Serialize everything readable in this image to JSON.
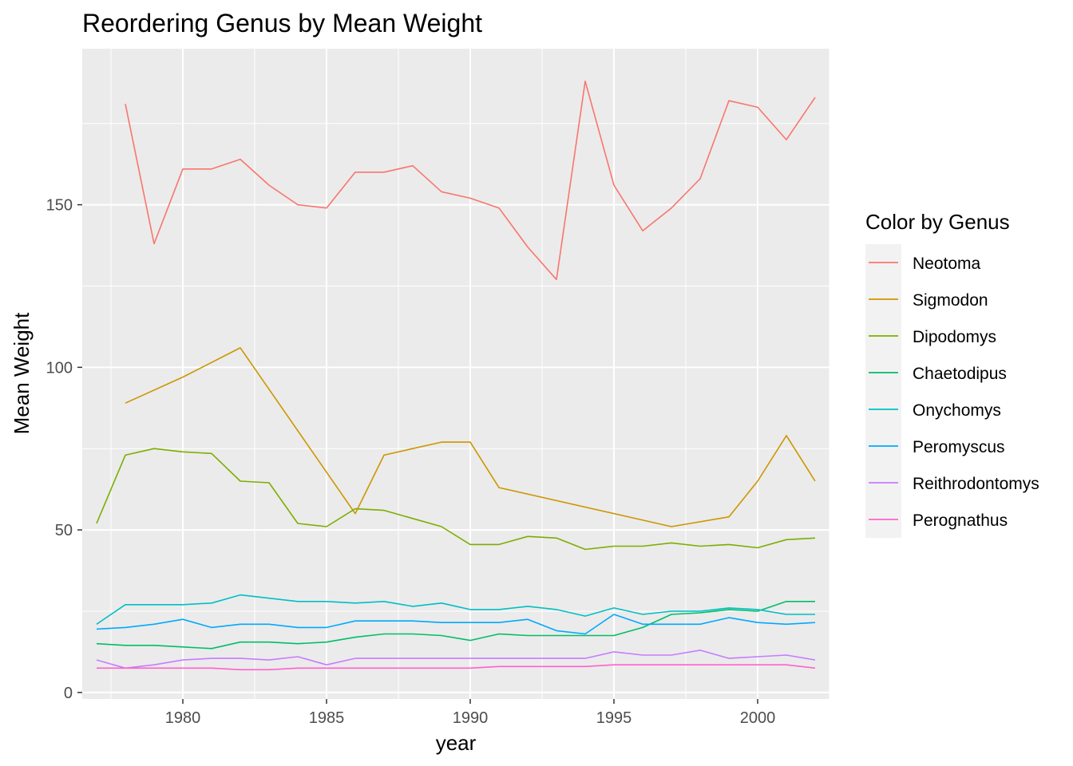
{
  "chart_data": {
    "type": "line",
    "title": "Reordering Genus by Mean Weight",
    "xlabel": "year",
    "ylabel": "Mean Weight",
    "xlim": [
      1976.5,
      2002.5
    ],
    "ylim": [
      -2,
      198
    ],
    "x_ticks": [
      1980,
      1985,
      1990,
      1995,
      2000
    ],
    "y_ticks": [
      0,
      50,
      100,
      150
    ],
    "grid": true,
    "legend": {
      "title": "Color by Genus",
      "placement": "right"
    },
    "series": [
      {
        "name": "Neotoma",
        "color": "#F8766D",
        "x": [
          1978,
          1979,
          1980,
          1981,
          1982,
          1983,
          1984,
          1985,
          1986,
          1987,
          1988,
          1989,
          1990,
          1991,
          1992,
          1993,
          1994,
          1995,
          1996,
          1997,
          1998,
          1999,
          2000,
          2001,
          2002
        ],
        "values": [
          181,
          138,
          161,
          161,
          164,
          156,
          150,
          149,
          160,
          160,
          162,
          154,
          152,
          149,
          137,
          127,
          188,
          156,
          142,
          149,
          158,
          182,
          180,
          170,
          183
        ]
      },
      {
        "name": "Sigmodon",
        "color": "#CD9600",
        "x": [
          1978,
          1980,
          1982,
          1986,
          1987,
          1988,
          1989,
          1990,
          1991,
          1997,
          1999,
          2000,
          2001,
          2002
        ],
        "values": [
          89,
          97,
          106,
          55,
          73,
          75,
          77,
          77,
          63,
          51,
          54,
          65,
          79,
          65
        ]
      },
      {
        "name": "Dipodomys",
        "color": "#7CAE00",
        "x": [
          1977,
          1978,
          1979,
          1980,
          1981,
          1982,
          1983,
          1984,
          1985,
          1986,
          1987,
          1988,
          1989,
          1990,
          1991,
          1992,
          1993,
          1994,
          1995,
          1996,
          1997,
          1998,
          1999,
          2000,
          2001,
          2002
        ],
        "values": [
          52,
          73,
          75,
          74,
          73.5,
          65,
          64.5,
          52,
          51,
          56.5,
          56,
          53.5,
          51,
          45.5,
          45.5,
          48,
          47.5,
          44,
          45,
          45,
          46,
          45,
          45.5,
          44.5,
          47,
          47.5
        ]
      },
      {
        "name": "Chaetodipus",
        "color": "#00BE67",
        "x": [
          1977,
          1978,
          1979,
          1980,
          1981,
          1982,
          1983,
          1984,
          1985,
          1986,
          1987,
          1988,
          1989,
          1990,
          1991,
          1992,
          1993,
          1994,
          1995,
          1996,
          1997,
          1998,
          1999,
          2000,
          2001,
          2002
        ],
        "values": [
          15,
          14.5,
          14.5,
          14,
          13.5,
          15.5,
          15.5,
          15,
          15.5,
          17,
          18,
          18,
          17.5,
          16,
          18,
          17.5,
          17.5,
          17.5,
          17.5,
          20,
          24,
          24.5,
          25.5,
          25,
          28,
          28
        ]
      },
      {
        "name": "Onychomys",
        "color": "#00BFC4",
        "x": [
          1977,
          1978,
          1979,
          1980,
          1981,
          1982,
          1983,
          1984,
          1985,
          1986,
          1987,
          1988,
          1989,
          1990,
          1991,
          1992,
          1993,
          1994,
          1995,
          1996,
          1997,
          1998,
          1999,
          2000,
          2001,
          2002
        ],
        "values": [
          21,
          27,
          27,
          27,
          27.5,
          30,
          29,
          28,
          28,
          27.5,
          28,
          26.5,
          27.5,
          25.5,
          25.5,
          26.5,
          25.5,
          23.5,
          26,
          24,
          25,
          25,
          26,
          25.5,
          24,
          24
        ]
      },
      {
        "name": "Peromyscus",
        "color": "#00A9FF",
        "x": [
          1977,
          1978,
          1979,
          1980,
          1981,
          1982,
          1983,
          1984,
          1985,
          1986,
          1987,
          1988,
          1989,
          1990,
          1991,
          1992,
          1993,
          1994,
          1995,
          1996,
          1997,
          1998,
          1999,
          2000,
          2001,
          2002
        ],
        "values": [
          19.5,
          20,
          21,
          22.5,
          20,
          21,
          21,
          20,
          20,
          22,
          22,
          22,
          21.5,
          21.5,
          21.5,
          22.5,
          19,
          18,
          24,
          21,
          21,
          21,
          23,
          21.5,
          21,
          21.5
        ]
      },
      {
        "name": "Reithrodontomys",
        "color": "#C77CFF",
        "x": [
          1977,
          1978,
          1979,
          1980,
          1981,
          1982,
          1983,
          1984,
          1985,
          1986,
          1987,
          1988,
          1989,
          1990,
          1991,
          1992,
          1993,
          1994,
          1995,
          1996,
          1997,
          1998,
          1999,
          2000,
          2001,
          2002
        ],
        "values": [
          10,
          7.5,
          8.5,
          10,
          10.5,
          10.5,
          10,
          11,
          8.5,
          10.5,
          10.5,
          10.5,
          10.5,
          10.5,
          10.5,
          10.5,
          10.5,
          10.5,
          12.5,
          11.5,
          11.5,
          13,
          10.5,
          11,
          11.5,
          10
        ]
      },
      {
        "name": "Perognathus",
        "color": "#FF61CC",
        "x": [
          1977,
          1978,
          1979,
          1980,
          1981,
          1982,
          1983,
          1984,
          1985,
          1986,
          1987,
          1988,
          1989,
          1990,
          1991,
          1992,
          1993,
          1994,
          1995,
          1996,
          1997,
          1998,
          1999,
          2000,
          2001,
          2002
        ],
        "values": [
          7.5,
          7.5,
          7.5,
          7.5,
          7.5,
          7,
          7,
          7.5,
          7.5,
          7.5,
          7.5,
          7.5,
          7.5,
          7.5,
          8,
          8,
          8,
          8,
          8.5,
          8.5,
          8.5,
          8.5,
          8.5,
          8.5,
          8.5,
          7.5
        ]
      }
    ]
  }
}
